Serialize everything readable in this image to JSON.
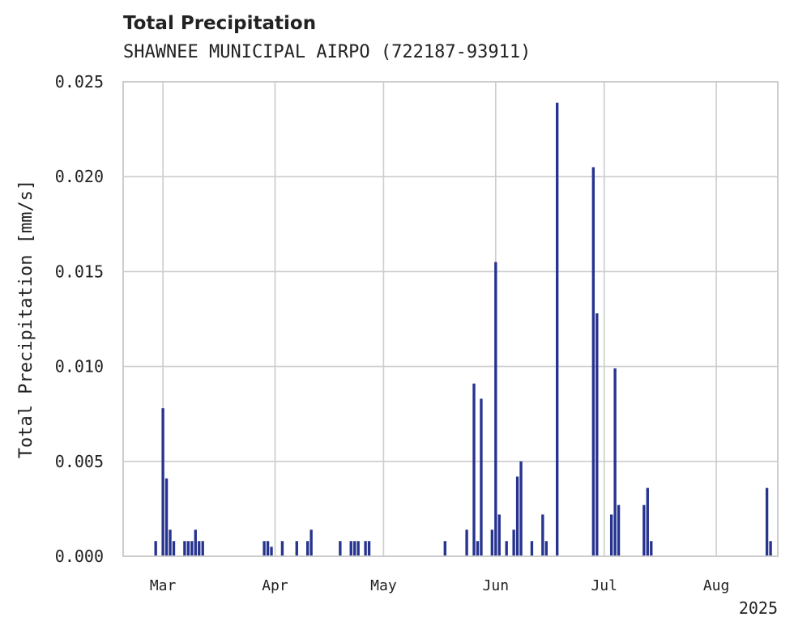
{
  "header": {
    "title": "Total Precipitation",
    "subtitle": "SHAWNEE MUNICIPAL AIRPO (722187-93911)"
  },
  "chart_data": {
    "type": "bar",
    "title": "Total Precipitation",
    "subtitle": "SHAWNEE MUNICIPAL AIRPO (722187-93911)",
    "xlabel": "",
    "ylabel": "Total Precipitation [mm/s]",
    "x_tick_labels": [
      "Mar",
      "Apr",
      "May",
      "Jun",
      "Jul",
      "Aug"
    ],
    "x_tick_dates": [
      "2025-03-01",
      "2025-04-01",
      "2025-05-01",
      "2025-06-01",
      "2025-07-01",
      "2025-08-01"
    ],
    "x_year_label": "2025",
    "xlim": [
      "2025-02-18",
      "2025-08-18"
    ],
    "y_tick_labels": [
      "0.000",
      "0.005",
      "0.010",
      "0.015",
      "0.020",
      "0.025"
    ],
    "ylim": [
      0,
      0.025
    ],
    "grid": true,
    "bar_color": "#26338f",
    "x": [
      "2025-02-27",
      "2025-03-01",
      "2025-03-02",
      "2025-03-03",
      "2025-03-04",
      "2025-03-07",
      "2025-03-08",
      "2025-03-09",
      "2025-03-10",
      "2025-03-11",
      "2025-03-12",
      "2025-03-29",
      "2025-03-30",
      "2025-03-31",
      "2025-04-03",
      "2025-04-07",
      "2025-04-10",
      "2025-04-11",
      "2025-04-19",
      "2025-04-22",
      "2025-04-23",
      "2025-04-24",
      "2025-04-26",
      "2025-04-27",
      "2025-05-18",
      "2025-05-24",
      "2025-05-26",
      "2025-05-27",
      "2025-05-28",
      "2025-05-31",
      "2025-06-01",
      "2025-06-02",
      "2025-06-04",
      "2025-06-06",
      "2025-06-07",
      "2025-06-08",
      "2025-06-11",
      "2025-06-14",
      "2025-06-15",
      "2025-06-18",
      "2025-06-28",
      "2025-06-29",
      "2025-07-03",
      "2025-07-04",
      "2025-07-05",
      "2025-07-12",
      "2025-07-13",
      "2025-07-14",
      "2025-08-15",
      "2025-08-16"
    ],
    "values": [
      0.0008,
      0.0078,
      0.0041,
      0.0014,
      0.0008,
      0.0008,
      0.0008,
      0.0008,
      0.0014,
      0.0008,
      0.0008,
      0.0008,
      0.0008,
      0.0005,
      0.0008,
      0.0008,
      0.0008,
      0.0014,
      0.0008,
      0.0008,
      0.0008,
      0.0008,
      0.0008,
      0.0008,
      0.0008,
      0.0014,
      0.0091,
      0.0008,
      0.0083,
      0.0014,
      0.0155,
      0.0022,
      0.0008,
      0.0014,
      0.0042,
      0.005,
      0.0008,
      0.0022,
      0.0008,
      0.0239,
      0.0205,
      0.0128,
      0.0022,
      0.0099,
      0.0027,
      0.0027,
      0.0036,
      0.0008,
      0.0036,
      0.0008
    ]
  }
}
